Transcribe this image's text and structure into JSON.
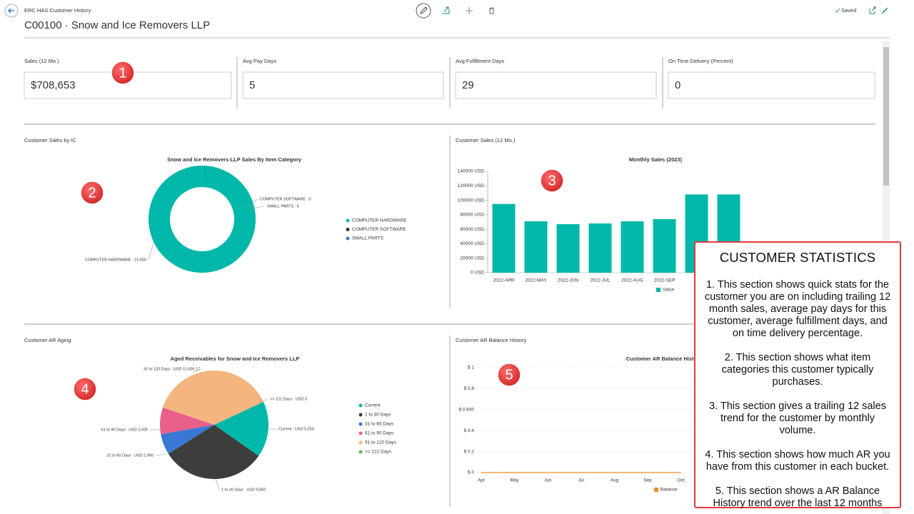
{
  "header": {
    "breadcrumb": "ERC HAS Customer History",
    "title": "C00100 · Snow and Ice Removers LLP",
    "status": "Saved"
  },
  "kpis": [
    {
      "label": "Sales (12 Mo.)",
      "value": "$708,653"
    },
    {
      "label": "Avg Pay Days",
      "value": "5"
    },
    {
      "label": "Avg Fulfillment Days",
      "value": "29"
    },
    {
      "label": "On Time Delivery (Percent)",
      "value": "0"
    }
  ],
  "sections": [
    "Customer Sales by IC",
    "Customer Sales (12 Mo.)",
    "Customer AR Aging",
    "Customer AR Balance History"
  ],
  "badges": [
    "1",
    "2",
    "3",
    "4",
    "5"
  ],
  "chart_data": [
    {
      "type": "donut",
      "title": "Snow and Ice Removers LLP Sales By Item Category",
      "categories": [
        "COMPUTER HARDWARE",
        "COMPUTER SOFTWARE",
        "SMALL PARTS"
      ],
      "values": [
        15550,
        0,
        5
      ],
      "value_labels": [
        "COMPUTER HARDWARE : 15,550",
        "COMPUTER SOFTWARE : 0",
        "SMALL PARTS : 5"
      ],
      "colors": [
        "#00b8a9",
        "#333333",
        "#3a7bd5"
      ],
      "legend": "right"
    },
    {
      "type": "bar",
      "title": "Monthly Sales (2023)",
      "categories": [
        "2022-APR",
        "2022-MAY",
        "2022-JUN",
        "2022-JUL",
        "2022-AUG",
        "2022-SEP",
        null,
        null
      ],
      "series": [
        {
          "name": "Value",
          "color": "#00b8a9",
          "values": [
            95000,
            71000,
            67000,
            68000,
            71000,
            74000,
            108000,
            108000
          ]
        }
      ],
      "ylim": [
        0,
        140000
      ],
      "yticks": [
        {
          "value": 0,
          "label": "0 USD"
        },
        {
          "value": 20000,
          "label": "20000 USD"
        },
        {
          "value": 40000,
          "label": "40000 USD"
        },
        {
          "value": 60000,
          "label": "60000 USD"
        },
        {
          "value": 80000,
          "label": "80000 USD"
        },
        {
          "value": 100000,
          "label": "100000 USD"
        },
        {
          "value": 120000,
          "label": "120000 USD"
        },
        {
          "value": 140000,
          "label": "140000 USD"
        }
      ],
      "legend": "bottom"
    },
    {
      "type": "pie",
      "title": "Aged Receivables for Snow and Ice Removers LLP",
      "categories": [
        "Current",
        "1 to 30 Days",
        "31 to 60 Days",
        "61 to 90 Days",
        "91 to 120 Days",
        ">= 121 Days"
      ],
      "values": [
        5250,
        9850,
        1950,
        2505,
        11926.17,
        0
      ],
      "value_labels": [
        "Current : USD 5,250",
        "1 to 30 Days : USD 9,850",
        "31 to 60 Days : USD 1,950",
        "61 to 90 Days : USD 2,505",
        "91 to 120 Days : USD 11,926.17",
        ">= 121 Days : USD 0"
      ],
      "colors": [
        "#00b8a9",
        "#3d3d3d",
        "#3a78d6",
        "#e8608a",
        "#f5b57f",
        "#5cb85c"
      ],
      "legend": "right"
    },
    {
      "type": "line",
      "title": "Customer AR Balance History",
      "categories": [
        "Apr",
        "May",
        "Jun",
        "Jul",
        "Aug",
        "Sep",
        "Oct"
      ],
      "series": [
        {
          "name": "Balance",
          "color": "#f08a24",
          "values": [
            0,
            0,
            0,
            0,
            0,
            0,
            0
          ]
        }
      ],
      "ylim": [
        0,
        1
      ],
      "yticks": [
        {
          "value": 0,
          "label": "$ 0"
        },
        {
          "value": 0.2,
          "label": "$ 0.2"
        },
        {
          "value": 0.4,
          "label": "$ 0.4"
        },
        {
          "value": 0.6,
          "label": "$ 0.600"
        },
        {
          "value": 0.8,
          "label": "$ 0.8"
        },
        {
          "value": 1,
          "label": "$ 1"
        }
      ],
      "grid": true,
      "legend": "bottom"
    }
  ],
  "callout": {
    "title": "CUSTOMER STATISTICS",
    "items": [
      "1. This section shows quick stats for the customer you are on including trailing 12 month sales, average pay days for this customer, average fulfillment days, and on time delivery percentage.",
      "2. This section shows what item categories this customer typically purchases.",
      "3. This section gives a trailing 12 sales trend for the customer by monthly volume.",
      "4. This section shows how much AR you have from this customer in each bucket.",
      "5. This section shows a AR Balance History trend over the last 12 months"
    ]
  }
}
